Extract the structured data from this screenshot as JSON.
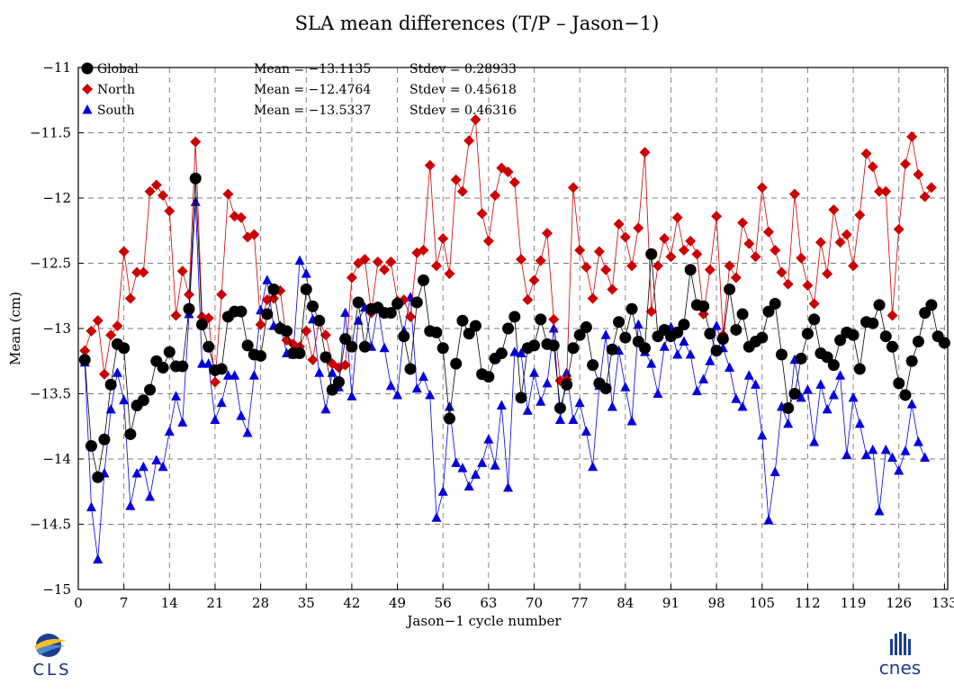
{
  "title": "SLA mean differences (T/P – Jason−1)",
  "chart_data": {
    "type": "scatter",
    "title": "SLA mean differences (T/P – Jason−1)",
    "xlabel": "Jason−1 cycle number",
    "ylabel": "Mean (cm)",
    "xlim": [
      0,
      133.5
    ],
    "ylim": [
      -15,
      -11
    ],
    "grid": true,
    "legend_position": "top-left",
    "x_ticks": [
      0,
      7,
      14,
      21,
      28,
      35,
      42,
      49,
      56,
      63,
      70,
      77,
      84,
      91,
      98,
      105,
      112,
      119,
      126,
      133
    ],
    "x_tick_labels": [
      "0",
      "7",
      "14",
      "21",
      "28",
      "35",
      "42",
      "49",
      "56",
      "63",
      "70",
      "77",
      "84",
      "91",
      "98",
      "105",
      "112",
      "119",
      "126",
      "133"
    ],
    "y_ticks": [
      -11,
      -11.5,
      -12,
      -12.5,
      -13,
      -13.5,
      -14,
      -14.5,
      -15
    ],
    "y_tick_labels": [
      "−11",
      "−11.5",
      "−12",
      "−12.5",
      "−13",
      "−13.5",
      "−14",
      "−14.5",
      "−15"
    ],
    "series": [
      {
        "name": "Global",
        "color": "#000000",
        "marker": "circle",
        "mean_text": "Mean = −13.1135",
        "stdev_text": "Stdev = 0.28933",
        "values": [
          -13.24,
          -13.9,
          -14.14,
          -13.85,
          -13.43,
          -13.12,
          -13.15,
          -13.81,
          -13.59,
          -13.55,
          -13.47,
          -13.25,
          -13.3,
          -13.18,
          -13.29,
          -13.29,
          -12.85,
          -11.85,
          -12.97,
          -13.14,
          -13.32,
          -13.31,
          -12.91,
          -12.87,
          -12.87,
          -13.13,
          -13.2,
          -13.21,
          -12.89,
          -12.7,
          -13.0,
          -13.02,
          -13.19,
          -13.19,
          -12.7,
          -12.83,
          -12.94,
          -13.22,
          -13.47,
          -13.41,
          -13.08,
          -13.14,
          -12.8,
          -13.14,
          -12.85,
          -12.84,
          -12.88,
          -12.88,
          -12.81,
          -13.06,
          -13.31,
          -12.8,
          -12.63,
          -13.02,
          -13.03,
          -13.15,
          -13.69,
          -13.27,
          -12.94,
          -13.04,
          -12.98,
          -13.35,
          -13.37,
          -13.23,
          -13.19,
          -13.0,
          -12.91,
          -13.53,
          -13.15,
          -13.13,
          -12.93,
          -13.12,
          -13.13,
          -13.61,
          -13.43,
          -13.15,
          -13.05,
          -12.99,
          -13.28,
          -13.42,
          -13.46,
          -13.16,
          -12.95,
          -13.07,
          -12.85,
          -13.1,
          -13.15,
          -12.43,
          -13.06,
          -13.01,
          -13.06,
          -13.03,
          -12.97,
          -12.55,
          -12.82,
          -12.83,
          -13.04,
          -13.17,
          -13.08,
          -12.7,
          -13.01,
          -12.89,
          -13.14,
          -13.1,
          -13.07,
          -12.87,
          -12.81,
          -13.2,
          -13.61,
          -13.5,
          -13.23,
          -13.04,
          -12.93,
          -13.19,
          -13.22,
          -13.28,
          -13.09,
          -13.03,
          -13.05,
          -13.31,
          -12.95,
          -12.96,
          -12.82,
          -13.06,
          -13.14,
          -13.42,
          -13.51,
          -13.25,
          -13.1,
          -12.88,
          -12.82,
          -13.06,
          -13.11
        ]
      },
      {
        "name": "North",
        "color": "#cc0000",
        "marker": "diamond",
        "mean_text": "Mean = −12.4764",
        "stdev_text": "Stdev = 0.45618",
        "values": [
          -13.17,
          -13.02,
          -12.94,
          -13.35,
          -13.05,
          -12.98,
          -12.41,
          -12.77,
          -12.57,
          -12.57,
          -11.95,
          -11.9,
          -11.98,
          -12.1,
          -12.9,
          -12.56,
          -12.74,
          -11.57,
          -12.91,
          -12.92,
          -13.41,
          -12.74,
          -11.97,
          -12.14,
          -12.15,
          -12.3,
          -12.28,
          -12.97,
          -12.78,
          -12.77,
          -12.71,
          -13.09,
          -13.12,
          -13.14,
          -13.02,
          -13.24,
          -12.94,
          -13.05,
          -13.27,
          -13.3,
          -13.28,
          -12.61,
          -12.5,
          -12.47,
          -12.88,
          -12.49,
          -12.55,
          -12.49,
          -12.79,
          -12.78,
          -12.91,
          -12.42,
          -12.4,
          -11.75,
          -12.52,
          -12.31,
          -12.58,
          -11.86,
          -11.95,
          -11.56,
          -11.4,
          -12.12,
          -12.33,
          -11.98,
          -11.77,
          -11.8,
          -11.88,
          -12.47,
          -12.78,
          -12.63,
          -12.48,
          -12.27,
          -12.93,
          -13.4,
          -13.39,
          -11.92,
          -12.4,
          -12.53,
          -12.77,
          -12.41,
          -12.55,
          -12.7,
          -12.2,
          -12.3,
          -12.52,
          -12.23,
          -11.65,
          -12.87,
          -12.52,
          -12.31,
          -12.45,
          -12.15,
          -12.4,
          -12.33,
          -12.43,
          -12.89,
          -12.55,
          -12.14,
          -13.05,
          -12.52,
          -12.61,
          -12.19,
          -12.35,
          -12.45,
          -11.92,
          -12.26,
          -12.4,
          -12.57,
          -12.66,
          -11.97,
          -12.46,
          -12.67,
          -12.81,
          -12.34,
          -12.58,
          -12.09,
          -12.34,
          -12.28,
          -12.52,
          -12.13,
          -11.66,
          -11.76,
          -11.95,
          -11.95,
          -12.9,
          -12.24,
          -11.74,
          -11.53,
          -11.82,
          -11.99,
          -11.92
        ]
      },
      {
        "name": "South",
        "color": "#0000dd",
        "marker": "triangle",
        "mean_text": "Mean = −13.5337",
        "stdev_text": "Stdev = 0.46316",
        "values": [
          -13.26,
          -14.37,
          -14.77,
          -14.11,
          -13.62,
          -13.34,
          -13.55,
          -14.36,
          -14.11,
          -14.06,
          -14.29,
          -14.01,
          -14.06,
          -13.79,
          -13.52,
          -13.72,
          -12.89,
          -12.03,
          -13.27,
          -13.27,
          -13.7,
          -13.57,
          -13.36,
          -13.36,
          -13.67,
          -13.8,
          -13.36,
          -12.86,
          -12.63,
          -12.98,
          -12.98,
          -13.19,
          -13.2,
          -12.48,
          -12.58,
          -12.93,
          -13.34,
          -13.62,
          -13.34,
          -13.45,
          -12.88,
          -13.52,
          -12.94,
          -12.84,
          -13.14,
          -12.83,
          -13.15,
          -13.44,
          -13.51,
          -13.02,
          -12.76,
          -13.46,
          -13.37,
          -13.51,
          -14.45,
          -14.25,
          -13.6,
          -14.03,
          -14.07,
          -14.21,
          -14.12,
          -14.03,
          -13.85,
          -14.05,
          -13.59,
          -14.22,
          -13.18,
          -13.19,
          -13.63,
          -13.34,
          -13.56,
          -13.42,
          -13.0,
          -13.7,
          -13.34,
          -13.7,
          -13.57,
          -13.79,
          -14.06,
          -13.44,
          -13.05,
          -13.6,
          -13.17,
          -13.45,
          -13.71,
          -12.97,
          -13.18,
          -13.27,
          -13.5,
          -13.14,
          -12.99,
          -13.2,
          -13.1,
          -13.2,
          -13.48,
          -13.39,
          -13.25,
          -12.98,
          -13.15,
          -13.3,
          -13.54,
          -13.6,
          -13.36,
          -13.43,
          -13.82,
          -14.47,
          -14.1,
          -13.6,
          -13.73,
          -13.24,
          -13.53,
          -13.47,
          -13.87,
          -13.43,
          -13.62,
          -13.51,
          -13.36,
          -13.97,
          -13.53,
          -13.73,
          -13.97,
          -13.93,
          -14.4,
          -13.93,
          -13.99,
          -14.09,
          -13.94,
          -13.58,
          -13.87,
          -13.99
        ]
      }
    ],
    "x_start": 1,
    "x_step": 1
  },
  "logos": {
    "left_text": "CLS",
    "left_small": "",
    "right_text": "cnes",
    "right_small": ""
  }
}
